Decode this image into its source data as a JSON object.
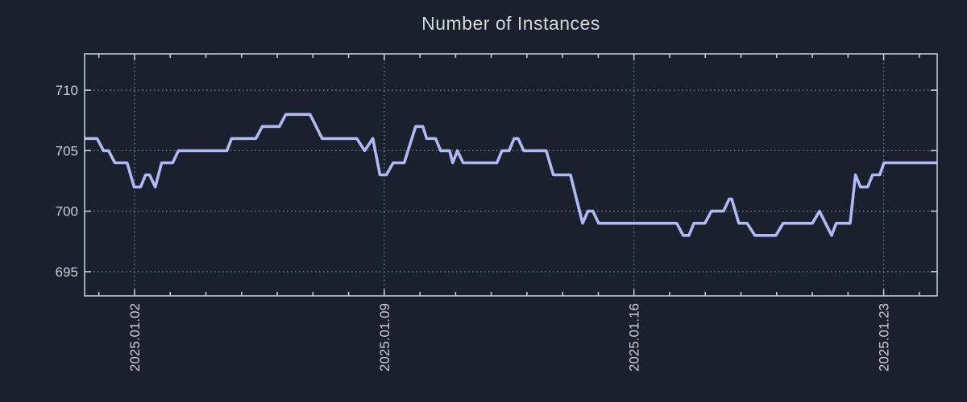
{
  "title": "Number of Instances",
  "colors": {
    "background": "#19212e",
    "line": "#b1b8f3",
    "grid": "#7e8894",
    "frame": "#d0d3d7",
    "text": "#ccd0d4",
    "title_text": "#d4d7da"
  },
  "chart_data": {
    "type": "line",
    "title": "Number of Instances",
    "series_name": "instances",
    "legend": "none",
    "grid": true,
    "grid_style": "dotted",
    "x_unit": "day of January 2025 (fractional)",
    "ylabel": "",
    "xlabel": "",
    "xlim": [
      0.6,
      24.5
    ],
    "ylim": [
      693,
      713
    ],
    "y_ticks": [
      695,
      700,
      705,
      710
    ],
    "x_ticks": [
      {
        "day": 2,
        "label": "2025.01.02"
      },
      {
        "day": 9,
        "label": "2025.01.09"
      },
      {
        "day": 16,
        "label": "2025.01.16"
      },
      {
        "day": 23,
        "label": "2025.01.23"
      }
    ],
    "x_minor_tick_interval": 1,
    "points": [
      [
        0.59,
        706
      ],
      [
        0.95,
        706
      ],
      [
        1.13,
        705
      ],
      [
        1.27,
        705
      ],
      [
        1.45,
        704
      ],
      [
        1.79,
        704
      ],
      [
        1.99,
        702
      ],
      [
        2.17,
        702
      ],
      [
        2.31,
        703
      ],
      [
        2.42,
        703
      ],
      [
        2.58,
        702
      ],
      [
        2.76,
        704
      ],
      [
        3.07,
        704
      ],
      [
        3.23,
        705
      ],
      [
        4.59,
        705
      ],
      [
        4.72,
        706
      ],
      [
        5.4,
        706
      ],
      [
        5.58,
        707
      ],
      [
        6.06,
        707
      ],
      [
        6.24,
        708
      ],
      [
        6.92,
        708
      ],
      [
        7.26,
        706
      ],
      [
        8.23,
        706
      ],
      [
        8.45,
        705
      ],
      [
        8.68,
        706
      ],
      [
        8.88,
        703
      ],
      [
        9.06,
        703
      ],
      [
        9.25,
        704
      ],
      [
        9.56,
        704
      ],
      [
        9.88,
        707
      ],
      [
        10.08,
        707
      ],
      [
        10.19,
        706
      ],
      [
        10.44,
        706
      ],
      [
        10.58,
        705
      ],
      [
        10.83,
        705
      ],
      [
        10.92,
        704
      ],
      [
        11.05,
        705
      ],
      [
        11.21,
        704
      ],
      [
        12.16,
        704
      ],
      [
        12.3,
        705
      ],
      [
        12.5,
        705
      ],
      [
        12.64,
        706
      ],
      [
        12.75,
        706
      ],
      [
        12.91,
        705
      ],
      [
        13.54,
        705
      ],
      [
        13.74,
        703
      ],
      [
        14.22,
        703
      ],
      [
        14.56,
        699
      ],
      [
        14.71,
        700
      ],
      [
        14.85,
        700
      ],
      [
        15.01,
        699
      ],
      [
        17.2,
        699
      ],
      [
        17.38,
        698
      ],
      [
        17.54,
        698
      ],
      [
        17.68,
        699
      ],
      [
        17.99,
        699
      ],
      [
        18.17,
        700
      ],
      [
        18.51,
        700
      ],
      [
        18.67,
        701
      ],
      [
        18.74,
        701
      ],
      [
        18.94,
        699
      ],
      [
        19.17,
        699
      ],
      [
        19.39,
        698
      ],
      [
        19.98,
        698
      ],
      [
        20.18,
        699
      ],
      [
        21.0,
        699
      ],
      [
        21.2,
        700
      ],
      [
        21.54,
        698
      ],
      [
        21.67,
        699
      ],
      [
        22.06,
        699
      ],
      [
        22.21,
        703
      ],
      [
        22.35,
        702
      ],
      [
        22.55,
        702
      ],
      [
        22.69,
        703
      ],
      [
        22.89,
        703
      ],
      [
        23.01,
        704
      ],
      [
        24.5,
        704
      ]
    ]
  }
}
